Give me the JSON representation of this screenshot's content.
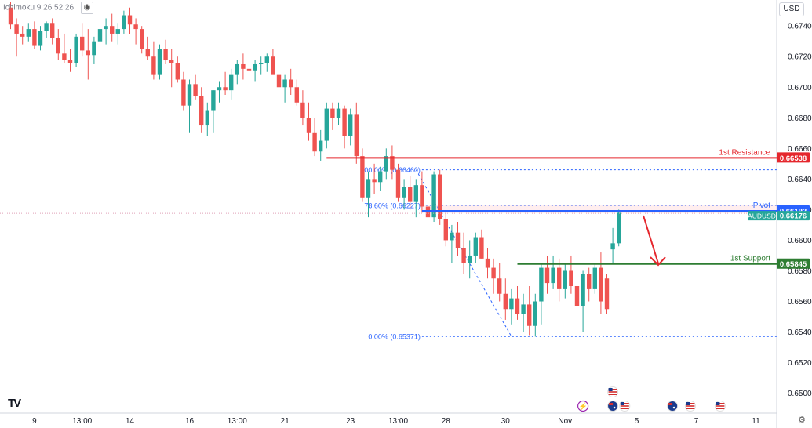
{
  "indicator_label": "Ichimoku 9 26 52 26",
  "currency": "USD",
  "logo": "TV",
  "settings_icon": "gear-icon",
  "eye_icon": "eye-icon",
  "chart_data": {
    "type": "candlestick",
    "symbol": "AUDUSD",
    "y_ticks": [
      0.674,
      0.672,
      0.67,
      0.668,
      0.666,
      0.664,
      0.662,
      0.66,
      0.658,
      0.656,
      0.654,
      0.652,
      0.65
    ],
    "y_tick_labels": [
      "0.67400",
      "0.67200",
      "0.67000",
      "0.66800",
      "0.66600",
      "0.66400",
      "0.66200",
      "0.66000",
      "0.65800",
      "0.65600",
      "0.65400",
      "0.65200",
      "0.65000"
    ],
    "ylim": [
      0.6487,
      0.6757
    ],
    "x_ticks": [
      {
        "label": "9",
        "bar": 4
      },
      {
        "label": "13:00",
        "bar": 12
      },
      {
        "label": "14",
        "bar": 20
      },
      {
        "label": "16",
        "bar": 30
      },
      {
        "label": "13:00",
        "bar": 38
      },
      {
        "label": "21",
        "bar": 46
      },
      {
        "label": "23",
        "bar": 57
      },
      {
        "label": "13:00",
        "bar": 65
      },
      {
        "label": "28",
        "bar": 73
      },
      {
        "label": "30",
        "bar": 83
      },
      {
        "label": "Nov",
        "bar": 93
      },
      {
        "label": "5",
        "bar": 105
      },
      {
        "label": "7",
        "bar": 115
      },
      {
        "label": "11",
        "bar": 125
      }
    ],
    "colors": {
      "up": "#26a69a",
      "down": "#ef5350",
      "resistance": "#e5272d",
      "support": "#2e7d32",
      "pivot": "#2962ff",
      "fib": "#2962ff"
    },
    "candles": [
      [
        0.6752,
        0.6756,
        0.6738,
        0.6741
      ],
      [
        0.6741,
        0.6745,
        0.672,
        0.6735
      ],
      [
        0.6735,
        0.674,
        0.6728,
        0.6733
      ],
      [
        0.6733,
        0.6742,
        0.673,
        0.6738
      ],
      [
        0.6738,
        0.6743,
        0.6725,
        0.6727
      ],
      [
        0.6727,
        0.674,
        0.6724,
        0.6737
      ],
      [
        0.6737,
        0.6743,
        0.6732,
        0.6742
      ],
      [
        0.6742,
        0.6745,
        0.6728,
        0.6732
      ],
      [
        0.6732,
        0.6738,
        0.6718,
        0.6722
      ],
      [
        0.6722,
        0.6735,
        0.6716,
        0.6718
      ],
      [
        0.6718,
        0.6725,
        0.671,
        0.6716
      ],
      [
        0.6716,
        0.6735,
        0.6713,
        0.6733
      ],
      [
        0.6733,
        0.6742,
        0.672,
        0.6724
      ],
      [
        0.6724,
        0.6738,
        0.6705,
        0.6721
      ],
      [
        0.6721,
        0.6733,
        0.6715,
        0.673
      ],
      [
        0.673,
        0.674,
        0.6725,
        0.6738
      ],
      [
        0.6738,
        0.6745,
        0.6728,
        0.674
      ],
      [
        0.674,
        0.6748,
        0.673,
        0.6735
      ],
      [
        0.6735,
        0.6742,
        0.6728,
        0.6738
      ],
      [
        0.6738,
        0.675,
        0.6735,
        0.6747
      ],
      [
        0.6747,
        0.6752,
        0.6735,
        0.6741
      ],
      [
        0.6741,
        0.6745,
        0.6728,
        0.6738
      ],
      [
        0.6738,
        0.674,
        0.6722,
        0.6725
      ],
      [
        0.6725,
        0.6733,
        0.6718,
        0.672
      ],
      [
        0.672,
        0.673,
        0.6705,
        0.6708
      ],
      [
        0.6708,
        0.6728,
        0.6705,
        0.6725
      ],
      [
        0.6725,
        0.6731,
        0.6715,
        0.6718
      ],
      [
        0.6718,
        0.6725,
        0.67,
        0.6716
      ],
      [
        0.6716,
        0.672,
        0.6703,
        0.6705
      ],
      [
        0.6705,
        0.671,
        0.6685,
        0.6688
      ],
      [
        0.6688,
        0.6705,
        0.667,
        0.6702
      ],
      [
        0.6702,
        0.6708,
        0.6692,
        0.6694
      ],
      [
        0.6694,
        0.67,
        0.667,
        0.6675
      ],
      [
        0.6675,
        0.669,
        0.6668,
        0.6685
      ],
      [
        0.6685,
        0.6698,
        0.667,
        0.6698
      ],
      [
        0.6698,
        0.6704,
        0.669,
        0.67
      ],
      [
        0.67,
        0.671,
        0.6695,
        0.6698
      ],
      [
        0.6698,
        0.6712,
        0.6692,
        0.6708
      ],
      [
        0.6708,
        0.6718,
        0.6702,
        0.6715
      ],
      [
        0.6715,
        0.6722,
        0.6705,
        0.6712
      ],
      [
        0.6712,
        0.6716,
        0.67,
        0.6711
      ],
      [
        0.6711,
        0.6718,
        0.6704,
        0.6715
      ],
      [
        0.6715,
        0.672,
        0.6708,
        0.6716
      ],
      [
        0.6716,
        0.6722,
        0.671,
        0.672
      ],
      [
        0.672,
        0.6725,
        0.671,
        0.6708
      ],
      [
        0.6708,
        0.6715,
        0.6695,
        0.67
      ],
      [
        0.67,
        0.6708,
        0.669,
        0.6705
      ],
      [
        0.6705,
        0.6712,
        0.6695,
        0.67
      ],
      [
        0.67,
        0.6705,
        0.6688,
        0.669
      ],
      [
        0.669,
        0.6698,
        0.6675,
        0.668
      ],
      [
        0.668,
        0.669,
        0.6665,
        0.667
      ],
      [
        0.667,
        0.668,
        0.6655,
        0.6658
      ],
      [
        0.6658,
        0.6672,
        0.6652,
        0.6665
      ],
      [
        0.6665,
        0.669,
        0.666,
        0.6686
      ],
      [
        0.6686,
        0.669,
        0.6672,
        0.668
      ],
      [
        0.668,
        0.669,
        0.6675,
        0.6686
      ],
      [
        0.6686,
        0.6688,
        0.666,
        0.6668
      ],
      [
        0.6668,
        0.6686,
        0.6662,
        0.6682
      ],
      [
        0.6682,
        0.669,
        0.665,
        0.6655
      ],
      [
        0.6655,
        0.666,
        0.6625,
        0.6628
      ],
      [
        0.6628,
        0.6645,
        0.6615,
        0.664
      ],
      [
        0.664,
        0.665,
        0.663,
        0.6638
      ],
      [
        0.6638,
        0.6648,
        0.6632,
        0.6645
      ],
      [
        0.6645,
        0.666,
        0.664,
        0.6655
      ],
      [
        0.6655,
        0.6662,
        0.664,
        0.6646
      ],
      [
        0.6646,
        0.665,
        0.6625,
        0.6628
      ],
      [
        0.6628,
        0.664,
        0.662,
        0.6635
      ],
      [
        0.6635,
        0.6642,
        0.662,
        0.6625
      ],
      [
        0.6625,
        0.664,
        0.6615,
        0.6636
      ],
      [
        0.6636,
        0.6645,
        0.6618,
        0.6622
      ],
      [
        0.6622,
        0.663,
        0.661,
        0.6615
      ],
      [
        0.6615,
        0.6645,
        0.6612,
        0.6643
      ],
      [
        0.6643,
        0.6646,
        0.661,
        0.6614
      ],
      [
        0.6614,
        0.6618,
        0.6596,
        0.66
      ],
      [
        0.66,
        0.661,
        0.6585,
        0.6605
      ],
      [
        0.6605,
        0.6612,
        0.659,
        0.6595
      ],
      [
        0.6595,
        0.6605,
        0.6578,
        0.6585
      ],
      [
        0.6585,
        0.66,
        0.6575,
        0.659
      ],
      [
        0.659,
        0.6605,
        0.6585,
        0.6602
      ],
      [
        0.6602,
        0.6607,
        0.6588,
        0.6588
      ],
      [
        0.6588,
        0.6595,
        0.6575,
        0.6582
      ],
      [
        0.6582,
        0.6588,
        0.6565,
        0.6575
      ],
      [
        0.6575,
        0.6585,
        0.656,
        0.6565
      ],
      [
        0.6565,
        0.6575,
        0.6548,
        0.6555
      ],
      [
        0.6555,
        0.6568,
        0.6545,
        0.6562
      ],
      [
        0.6562,
        0.657,
        0.6548,
        0.6552
      ],
      [
        0.6552,
        0.6565,
        0.654,
        0.6558
      ],
      [
        0.6558,
        0.657,
        0.6538,
        0.6544
      ],
      [
        0.6544,
        0.6565,
        0.6537,
        0.656
      ],
      [
        0.656,
        0.6585,
        0.6545,
        0.6582
      ],
      [
        0.6582,
        0.659,
        0.6565,
        0.6572
      ],
      [
        0.6572,
        0.659,
        0.6568,
        0.6582
      ],
      [
        0.6582,
        0.6588,
        0.656,
        0.6568
      ],
      [
        0.6568,
        0.6585,
        0.6562,
        0.658
      ],
      [
        0.658,
        0.659,
        0.6565,
        0.657
      ],
      [
        0.657,
        0.658,
        0.6548,
        0.6557
      ],
      [
        0.6557,
        0.658,
        0.654,
        0.6578
      ],
      [
        0.6578,
        0.6582,
        0.656,
        0.6568
      ],
      [
        0.6568,
        0.6585,
        0.6565,
        0.6582
      ],
      [
        0.6582,
        0.6592,
        0.6552,
        0.656
      ],
      [
        0.6575,
        0.6578,
        0.6552,
        0.6555
      ],
      [
        0.6594,
        0.6608,
        0.6585,
        0.6598
      ],
      [
        0.6598,
        0.662,
        0.6596,
        0.6618
      ]
    ],
    "levels": [
      {
        "name": "1st Resistance",
        "value": 0.66538,
        "label": "0.66538",
        "color": "#e5272d"
      },
      {
        "name": "Pivot",
        "value": 0.66192,
        "label": "0.66192",
        "color": "#2962ff"
      },
      {
        "name": "1st Support",
        "value": 0.65845,
        "label": "0.65845",
        "color": "#2e7d32"
      }
    ],
    "current_price": {
      "symbol": "AUDUSD",
      "value": 0.66176,
      "label": "0.66176"
    },
    "fib_levels": [
      {
        "label": "100.00% (0.66460)",
        "value": 0.6646
      },
      {
        "label": "78.60% (0.66227)",
        "value": 0.66227
      },
      {
        "label": "0.00% (0.65371)",
        "value": 0.65371
      }
    ],
    "events": [
      {
        "bar": 96,
        "type": "lightning-icon"
      },
      {
        "bar": 101,
        "type": "au-flag-icon"
      },
      {
        "bar": 101,
        "type": "us-flag-icon"
      },
      {
        "bar": 103,
        "type": "us-flag-icon"
      },
      {
        "bar": 111,
        "type": "au-flag-icon"
      },
      {
        "bar": 114,
        "type": "us-flag-icon"
      },
      {
        "bar": 119,
        "type": "us-flag-icon"
      }
    ]
  }
}
